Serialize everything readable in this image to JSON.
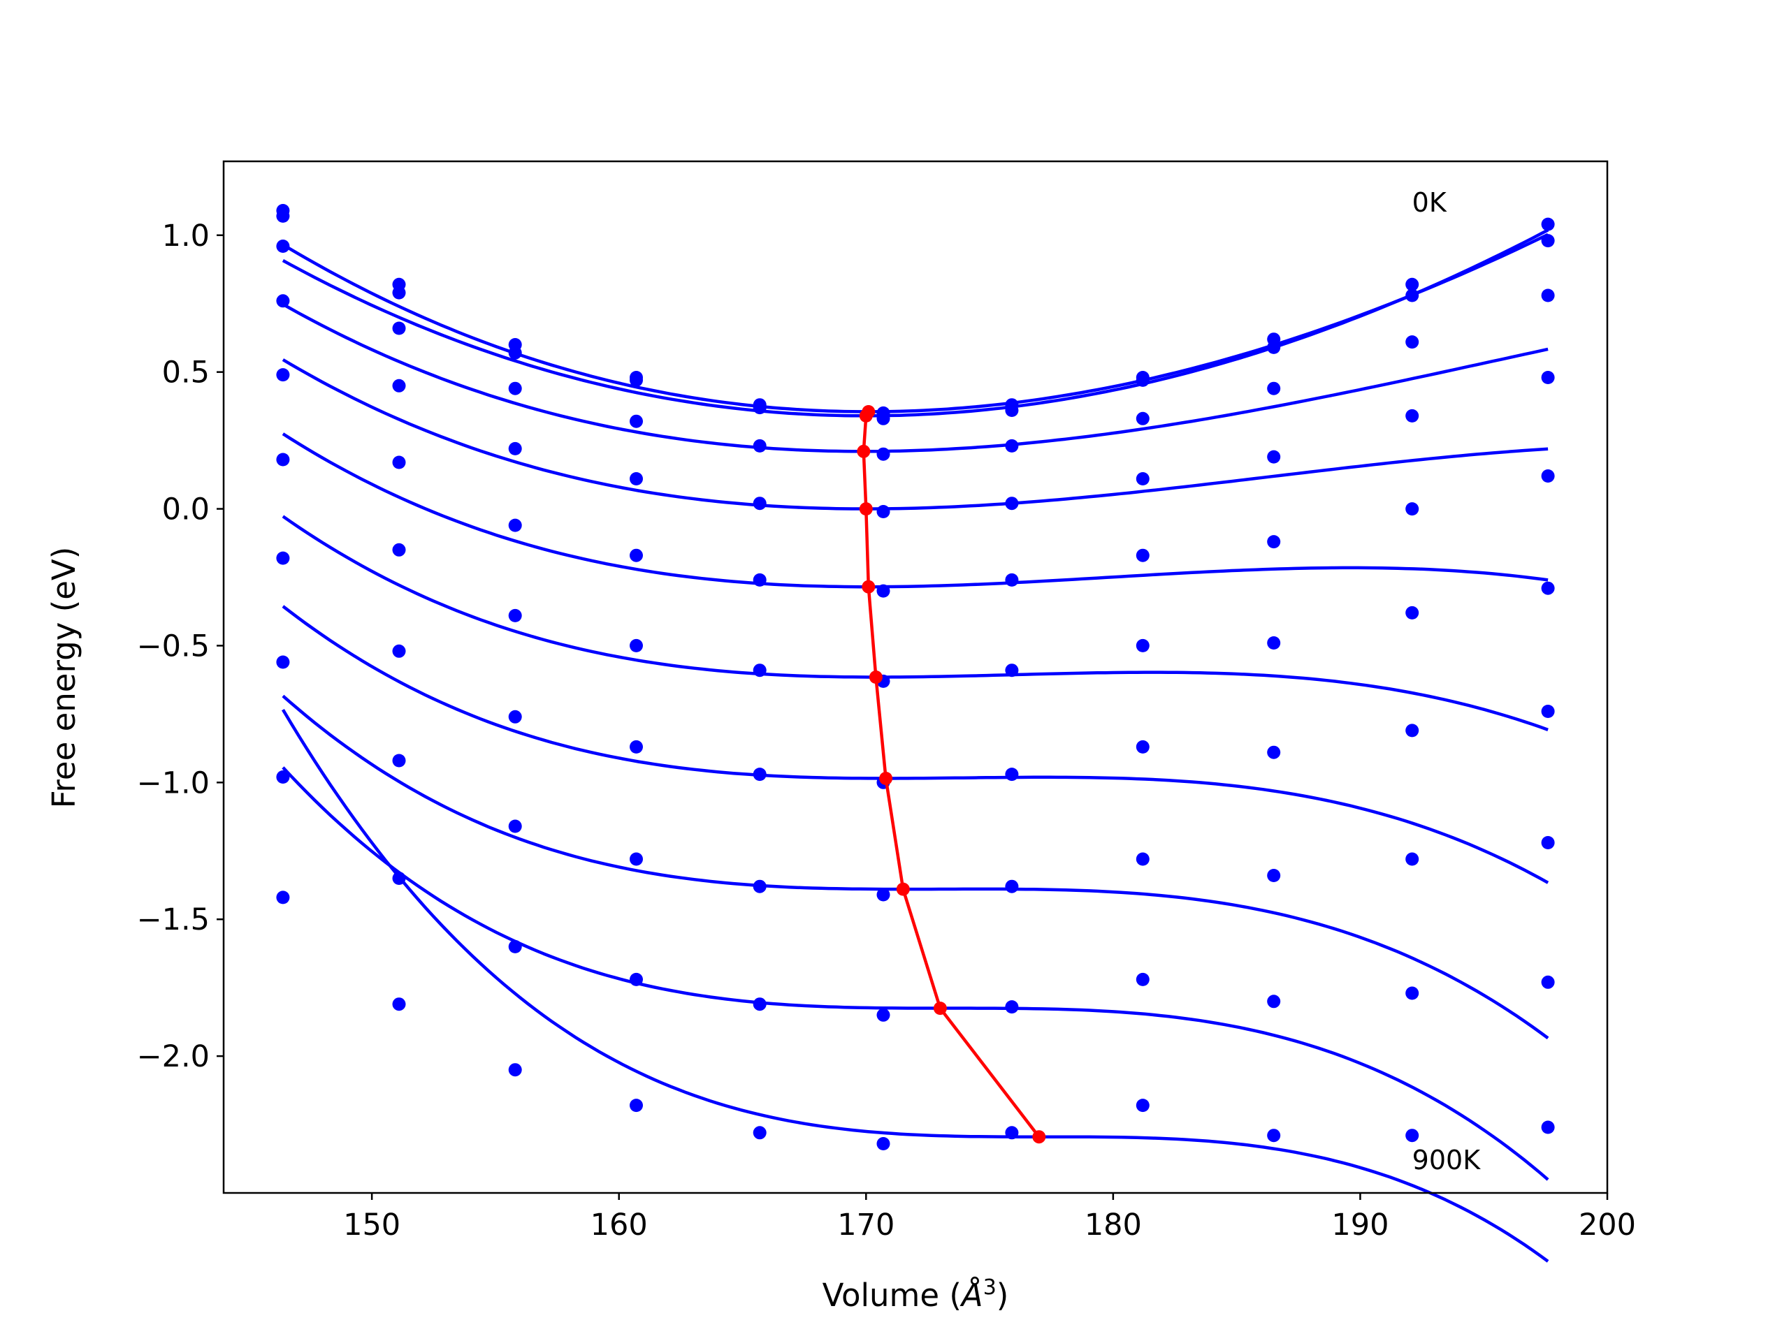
{
  "chart_data": {
    "type": "scatter",
    "xlabel": "Volume (Å3)",
    "xlabel_parts": {
      "prefix": "Volume (",
      "symbol": "Å",
      "superscript": "3",
      "suffix": ")"
    },
    "ylabel": "Free energy (eV)",
    "xlim": [
      144,
      200
    ],
    "ylim": [
      -2.5,
      1.27
    ],
    "xticks": [
      150,
      160,
      170,
      180,
      190,
      200
    ],
    "xtick_labels": [
      "150",
      "160",
      "170",
      "180",
      "190",
      "200"
    ],
    "yticks": [
      -2.0,
      -1.5,
      -1.0,
      -0.5,
      0.0,
      0.5,
      1.0
    ],
    "ytick_labels": [
      "−2.0",
      "−1.5",
      "−1.0",
      "−0.5",
      "0.0",
      "0.5",
      "1.0"
    ],
    "grid": false,
    "annotations": [
      {
        "text": "0K",
        "x": 192.1,
        "y": 1.12
      },
      {
        "text": "900K",
        "x": 192.1,
        "y": -2.38
      }
    ],
    "colors": {
      "data": "#0000ff",
      "minimum": "#ff0000"
    },
    "x": [
      146.4,
      151.1,
      155.8,
      160.7,
      165.7,
      170.7,
      175.9,
      181.2,
      186.5,
      192.1,
      197.6
    ],
    "series": [
      {
        "points": [
          1.09,
          0.82,
          0.6,
          0.48,
          0.38,
          0.35,
          0.38,
          0.48,
          0.62,
          0.82,
          1.04
        ],
        "fit": {
          "vmin": 170.1,
          "emin": 0.355,
          "a": 0.00098,
          "b": 4.5e-06
        }
      },
      {
        "points": [
          1.07,
          0.79,
          0.57,
          0.47,
          0.37,
          0.33,
          0.36,
          0.47,
          0.59,
          0.78,
          0.98
        ],
        "fit": {
          "vmin": 170.0,
          "emin": 0.34,
          "a": 0.00096,
          "b": 2.5e-06
        }
      },
      {
        "points": [
          0.96,
          0.66,
          0.44,
          0.32,
          0.23,
          0.2,
          0.23,
          0.33,
          0.44,
          0.61,
          0.78
        ],
        "fit": {
          "vmin": 169.9,
          "emin": 0.21,
          "a": 0.00075,
          "b": 9.5e-06
        }
      },
      {
        "points": [
          0.76,
          0.45,
          0.22,
          0.11,
          0.02,
          -0.01,
          0.02,
          0.11,
          0.19,
          0.34,
          0.48
        ],
        "fit": {
          "vmin": 170.0,
          "emin": 0.0,
          "a": 0.00066,
          "b": 1.35e-05
        }
      },
      {
        "points": [
          0.49,
          0.17,
          -0.06,
          -0.17,
          -0.26,
          -0.3,
          -0.26,
          -0.17,
          -0.12,
          0.0,
          0.12
        ],
        "fit": {
          "vmin": 170.1,
          "emin": -0.285,
          "a": 0.00055,
          "b": 1.88e-05
        }
      },
      {
        "points": [
          0.18,
          -0.15,
          -0.39,
          -0.5,
          -0.59,
          -0.63,
          -0.59,
          -0.5,
          -0.49,
          -0.38,
          -0.29
        ],
        "fit": {
          "vmin": 170.4,
          "emin": -0.615,
          "a": 0.00042,
          "b": 2.5e-05
        }
      },
      {
        "points": [
          -0.18,
          -0.52,
          -0.76,
          -0.87,
          -0.97,
          -1.0,
          -0.97,
          -0.87,
          -0.89,
          -0.81,
          -0.74
        ],
        "fit": {
          "vmin": 170.8,
          "emin": -0.985,
          "a": 0.0003,
          "b": 3.1e-05
        }
      },
      {
        "points": [
          -0.56,
          -0.92,
          -1.16,
          -1.28,
          -1.38,
          -1.41,
          -1.38,
          -1.28,
          -1.34,
          -1.28,
          -1.22
        ],
        "fit": {
          "vmin": 171.5,
          "emin": -1.39,
          "a": 0.00018,
          "b": 3.75e-05
        }
      },
      {
        "points": [
          -0.98,
          -1.35,
          -1.6,
          -1.72,
          -1.81,
          -1.85,
          -1.82,
          -1.72,
          -1.8,
          -1.77,
          -1.73
        ],
        "fit": {
          "vmin": 173.0,
          "emin": -1.825,
          "a": 6e-05,
          "b": 4.45e-05
        }
      },
      {
        "points": [
          -1.42,
          -1.81,
          -2.05,
          -2.18,
          -2.28,
          -2.32,
          -2.28,
          -2.18,
          -2.29,
          -2.29,
          -2.26
        ],
        "fit": {
          "vmin": 177.0,
          "emin": -2.295,
          "a": 3e-05,
          "b": 5.35e-05
        }
      }
    ],
    "minimum_line": {
      "x": [
        170.1,
        170.0,
        169.9,
        170.0,
        170.1,
        170.4,
        170.8,
        171.5,
        173.0,
        177.0
      ],
      "y": [
        0.355,
        0.34,
        0.21,
        0.0,
        -0.285,
        -0.615,
        -0.985,
        -1.39,
        -1.825,
        -2.295
      ]
    }
  }
}
